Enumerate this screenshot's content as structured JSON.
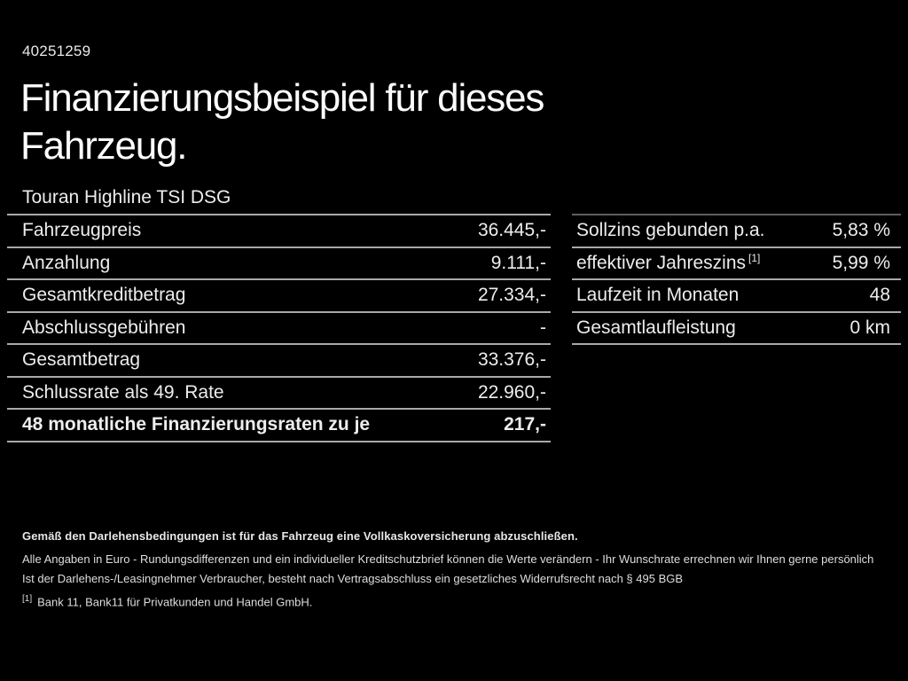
{
  "page": {
    "background_color": "#000000",
    "text_color": "#efefef",
    "divider_color": "#a9a9a9"
  },
  "header": {
    "id_number": "40251259",
    "title": "Finanzierungsbeispiel für dieses Fahrzeug.",
    "vehicle_name": "Touran Highline TSI DSG"
  },
  "finance_table": {
    "rows": [
      {
        "label": "Fahrzeugpreis",
        "value": "36.445,-"
      },
      {
        "label": "Anzahlung",
        "value": "9.111,-"
      },
      {
        "label": "Gesamtkreditbetrag",
        "value": "27.334,-"
      },
      {
        "label": "Abschlussgebühren",
        "value": "-"
      },
      {
        "label": "Gesamtbetrag",
        "value": "33.376,-"
      },
      {
        "label": "Schlussrate als 49. Rate",
        "value": "22.960,-"
      },
      {
        "label": "48 monatliche Finanzierungsraten zu je",
        "value": "217,-"
      }
    ]
  },
  "conditions_table": {
    "rows": [
      {
        "label": "Sollzins gebunden p.a.",
        "marker": "",
        "value": "5,83 %"
      },
      {
        "label": "effektiver Jahreszins",
        "marker": "[1]",
        "value": "5,99 %"
      },
      {
        "label": "Laufzeit in Monaten",
        "marker": "",
        "value": "48"
      },
      {
        "label": "Gesamtlaufleistung",
        "marker": "",
        "value": "0 km"
      }
    ]
  },
  "notes": {
    "insurance": "Gemäß den Darlehensbedingungen ist für das Fahrzeug eine Vollkaskoversicherung abzuschließen.",
    "disclaimer_1": "Alle Angaben in Euro - Rundungsdifferenzen und ein individueller Kreditschutzbrief können die Werte verändern - Ihr Wunschrate errechnen wir Ihnen gerne persönlich",
    "disclaimer_2": "Ist der Darlehens-/Leasingnehmer Verbraucher, besteht nach Vertragsabschluss ein gesetzliches Widerrufsrecht nach § 495 BGB",
    "footnote_marker": "[1]",
    "footnote": "Bank 11, Bank11 für Privatkunden und Handel GmbH."
  }
}
